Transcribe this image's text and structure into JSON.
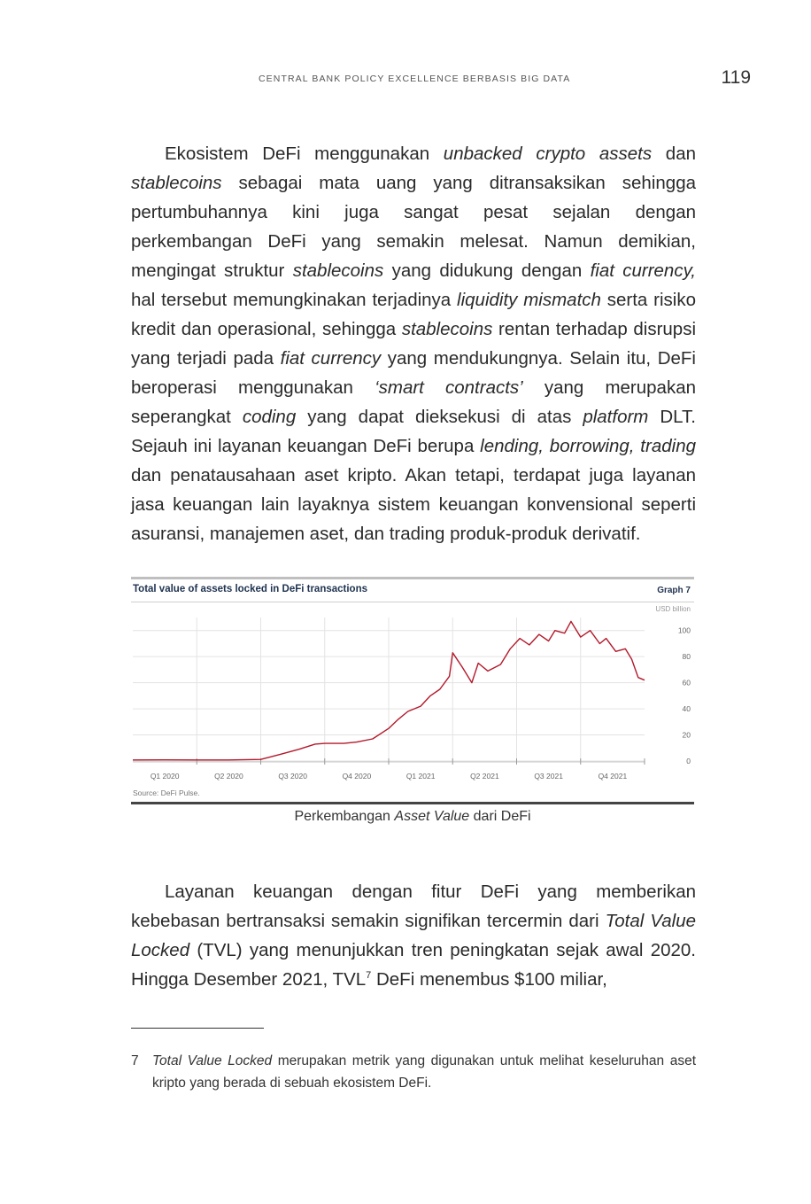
{
  "header": {
    "running_title": "CENTRAL BANK POLICY EXCELLENCE BERBASIS BIG DATA",
    "page_number": "119"
  },
  "paragraph1": {
    "t1": "Ekosistem DeFi menggunakan ",
    "i1": "unbacked crypto assets",
    "t2": " dan ",
    "i2": "stablecoins",
    "t3": " sebagai mata uang yang ditransaksikan sehingga pertumbuhannya kini juga sangat pesat sejalan dengan perkembangan DeFi yang semakin melesat. Namun demikian, mengingat struktur ",
    "i3": "stablecoins",
    "t4": " yang didukung dengan ",
    "i4": "fiat currency,",
    "t5": " hal tersebut memungkinakan terjadinya ",
    "i5": "liquidity mismatch",
    "t6": " serta risiko kredit dan operasional, sehingga ",
    "i6": "stablecoins",
    "t7": " rentan terhadap disrupsi yang terjadi pada ",
    "i7": "fiat currency",
    "t8": " yang mendukungnya. Selain itu, DeFi beroperasi menggunakan ",
    "i8": "‘smart contracts’",
    "t9": " yang merupakan seperangkat ",
    "i9": "coding",
    "t10": " yang dapat dieksekusi di atas ",
    "i10": "platform",
    "t11": " DLT. Sejauh ini layanan keuangan DeFi berupa ",
    "i11": "lending, borrowing, trading",
    "t12": " dan penatausahaan aset kripto. Akan tetapi, terdapat juga layanan jasa keuangan lain layaknya sistem keuangan konvensional seperti asuransi, manajemen aset, dan trading produk-produk derivatif."
  },
  "chart_data": {
    "type": "line",
    "title": "Total value of assets locked in DeFi transactions",
    "graph_label": "Graph 7",
    "unit": "USD billion",
    "source": "Source: DeFi Pulse.",
    "categories": [
      "Q1 2020",
      "Q2 2020",
      "Q3 2020",
      "Q4 2020",
      "Q1 2021",
      "Q2 2021",
      "Q3 2021",
      "Q4 2021"
    ],
    "x": [
      0.0,
      0.5,
      1.0,
      1.5,
      2.0,
      2.3,
      2.6,
      2.85,
      3.0,
      3.3,
      3.5,
      3.75,
      4.0,
      4.15,
      4.3,
      4.5,
      4.65,
      4.8,
      4.95,
      5.0,
      5.15,
      5.3,
      5.4,
      5.55,
      5.75,
      5.9,
      6.05,
      6.2,
      6.35,
      6.5,
      6.6,
      6.75,
      6.85,
      7.0,
      7.15,
      7.3,
      7.4,
      7.55,
      7.7,
      7.8,
      7.9,
      8.0
    ],
    "values": [
      0.8,
      0.9,
      0.8,
      0.8,
      1.2,
      5.0,
      9.0,
      13.0,
      13.5,
      13.5,
      14.5,
      17.0,
      25.0,
      32.0,
      38.0,
      42.0,
      50.0,
      55.0,
      65.0,
      83.0,
      72.0,
      60.0,
      75.0,
      69.0,
      74.0,
      86.0,
      94.0,
      89.0,
      97.0,
      92.0,
      100.0,
      98.0,
      107.0,
      95.0,
      100.0,
      90.0,
      94.0,
      84.0,
      86.0,
      78.0,
      64.0,
      62.0
    ],
    "ylim": [
      0,
      110
    ],
    "y_ticks": [
      0,
      20,
      40,
      60,
      80,
      100
    ],
    "grid": true,
    "line_color": "#b3192b"
  },
  "caption": {
    "t1": "Perkembangan ",
    "i1": "Asset Value",
    "t2": " dari DeFi"
  },
  "paragraph2": {
    "t1": "Layanan keuangan dengan fitur DeFi yang memberikan kebebasan bertransaksi semakin signifikan tercermin dari ",
    "i1": "Total Value Locked",
    "t2": " (TVL) yang menunjukkan tren peningkatan sejak awal 2020. Hingga Desember 2021, TVL",
    "sup": "7",
    "t3": " DeFi menembus $100 miliar,"
  },
  "footnote": {
    "number": "7",
    "i1": "Total Value Locked",
    "t1": " merupakan metrik yang digunakan untuk melihat keseluruhan aset kripto yang berada di sebuah ekosistem DeFi."
  }
}
